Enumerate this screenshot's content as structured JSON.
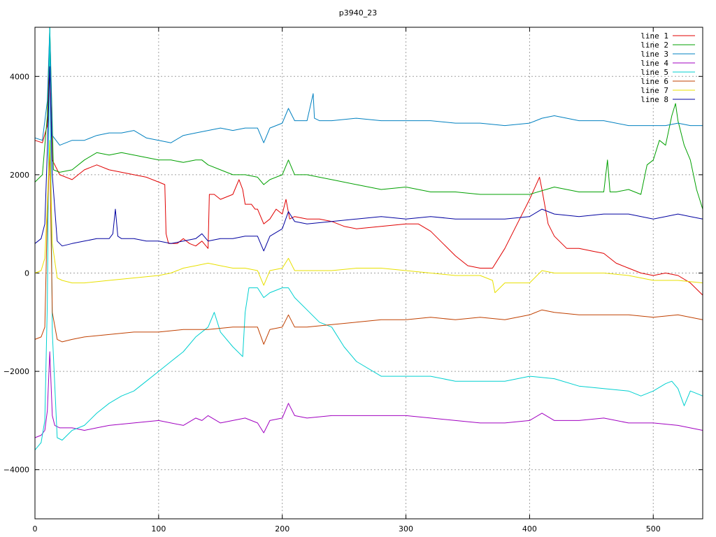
{
  "chart_data": {
    "type": "line",
    "title": "p3940_23",
    "xlabel": "",
    "ylabel": "",
    "xlim": [
      0,
      540
    ],
    "ylim": [
      -5000,
      5000
    ],
    "x_ticks": [
      0,
      100,
      200,
      300,
      400,
      500
    ],
    "y_ticks": [
      -4000,
      -2000,
      0,
      2000,
      4000
    ],
    "y_tick_labels": [
      "−4000",
      "−2000",
      "0",
      "2000",
      "4000"
    ],
    "grid": true,
    "legend_position": "top-right",
    "series": [
      {
        "name": "line 1",
        "color": "#e00000",
        "x": [
          0,
          6,
          10,
          12,
          14,
          20,
          30,
          35,
          40,
          50,
          60,
          70,
          80,
          90,
          100,
          105,
          106,
          108,
          115,
          120,
          125,
          130,
          135,
          140,
          141,
          145,
          150,
          160,
          165,
          168,
          170,
          175,
          178,
          180,
          185,
          190,
          195,
          200,
          203,
          206,
          210,
          220,
          230,
          240,
          250,
          260,
          280,
          300,
          310,
          320,
          330,
          340,
          350,
          360,
          370,
          380,
          390,
          400,
          408,
          410,
          415,
          420,
          430,
          440,
          450,
          460,
          470,
          480,
          490,
          500,
          510,
          520,
          530,
          540
        ],
        "y": [
          2700,
          2650,
          3000,
          4400,
          2300,
          2000,
          1900,
          2000,
          2100,
          2200,
          2100,
          2050,
          2000,
          1950,
          1850,
          1800,
          800,
          600,
          600,
          700,
          600,
          550,
          650,
          500,
          1600,
          1600,
          1500,
          1600,
          1900,
          1700,
          1400,
          1400,
          1300,
          1300,
          1000,
          1100,
          1300,
          1200,
          1500,
          1100,
          1150,
          1100,
          1100,
          1050,
          950,
          900,
          950,
          1000,
          1000,
          850,
          600,
          350,
          150,
          100,
          100,
          500,
          1000,
          1500,
          1950,
          1700,
          1000,
          750,
          500,
          500,
          450,
          400,
          200,
          100,
          0,
          -50,
          0,
          -50,
          -200,
          -450
        ]
      },
      {
        "name": "line 2",
        "color": "#00a000",
        "x": [
          0,
          6,
          10,
          12,
          13,
          15,
          20,
          30,
          40,
          50,
          60,
          70,
          80,
          100,
          110,
          120,
          130,
          135,
          140,
          150,
          160,
          170,
          180,
          185,
          190,
          200,
          205,
          210,
          220,
          240,
          260,
          280,
          300,
          320,
          340,
          360,
          380,
          400,
          420,
          440,
          460,
          463,
          465,
          470,
          480,
          490,
          495,
          500,
          505,
          510,
          515,
          518,
          520,
          525,
          530,
          535,
          540
        ],
        "y": [
          1850,
          2000,
          3200,
          5200,
          4000,
          2100,
          2050,
          2100,
          2300,
          2450,
          2400,
          2450,
          2400,
          2300,
          2300,
          2250,
          2300,
          2300,
          2200,
          2100,
          2000,
          2000,
          1950,
          1800,
          1900,
          2000,
          2300,
          2000,
          2000,
          1900,
          1800,
          1700,
          1750,
          1650,
          1650,
          1600,
          1600,
          1600,
          1750,
          1650,
          1650,
          2300,
          1650,
          1650,
          1700,
          1600,
          2200,
          2300,
          2700,
          2600,
          3200,
          3450,
          3100,
          2600,
          2300,
          1700,
          1300
        ]
      },
      {
        "name": "line 3",
        "color": "#0080c0",
        "x": [
          0,
          6,
          10,
          12,
          14,
          20,
          30,
          40,
          50,
          60,
          70,
          80,
          90,
          100,
          110,
          120,
          130,
          140,
          150,
          160,
          170,
          180,
          185,
          190,
          200,
          205,
          210,
          220,
          225,
          226,
          230,
          240,
          260,
          280,
          300,
          320,
          340,
          360,
          380,
          400,
          410,
          420,
          440,
          460,
          480,
          500,
          510,
          520,
          530,
          540
        ],
        "y": [
          2750,
          2700,
          3500,
          5200,
          2800,
          2600,
          2700,
          2700,
          2800,
          2850,
          2850,
          2900,
          2750,
          2700,
          2650,
          2800,
          2850,
          2900,
          2950,
          2900,
          2950,
          2950,
          2650,
          2950,
          3050,
          3350,
          3100,
          3100,
          3650,
          3150,
          3100,
          3100,
          3150,
          3100,
          3100,
          3100,
          3050,
          3050,
          3000,
          3050,
          3150,
          3200,
          3100,
          3100,
          3000,
          3000,
          3000,
          3050,
          3000,
          3000
        ]
      },
      {
        "name": "line 4",
        "color": "#a000c0",
        "x": [
          0,
          5,
          8,
          10,
          12,
          14,
          16,
          20,
          30,
          40,
          50,
          60,
          80,
          100,
          120,
          130,
          135,
          140,
          150,
          160,
          170,
          180,
          185,
          190,
          200,
          205,
          210,
          220,
          240,
          260,
          280,
          300,
          320,
          340,
          360,
          380,
          400,
          410,
          420,
          440,
          460,
          480,
          500,
          520,
          540
        ],
        "y": [
          -3350,
          -3300,
          -3200,
          -2800,
          -1600,
          -2900,
          -3100,
          -3150,
          -3150,
          -3200,
          -3150,
          -3100,
          -3050,
          -3000,
          -3100,
          -2950,
          -3000,
          -2900,
          -3050,
          -3000,
          -2950,
          -3050,
          -3250,
          -3000,
          -2950,
          -2650,
          -2900,
          -2950,
          -2900,
          -2900,
          -2900,
          -2900,
          -2950,
          -3000,
          -3050,
          -3050,
          -3000,
          -2850,
          -3000,
          -3000,
          -2950,
          -3050,
          -3050,
          -3100,
          -3200
        ]
      },
      {
        "name": "line 5",
        "color": "#00d0d0",
        "x": [
          0,
          5,
          8,
          10,
          12,
          14,
          18,
          22,
          30,
          40,
          50,
          60,
          70,
          80,
          90,
          100,
          110,
          120,
          130,
          140,
          145,
          150,
          160,
          168,
          170,
          173,
          175,
          180,
          185,
          190,
          200,
          205,
          210,
          220,
          230,
          240,
          250,
          260,
          280,
          300,
          320,
          340,
          360,
          380,
          400,
          420,
          440,
          460,
          480,
          490,
          500,
          510,
          515,
          520,
          525,
          530,
          535,
          540
        ],
        "y": [
          -3600,
          -3450,
          -3000,
          -600,
          5100,
          -1200,
          -3350,
          -3400,
          -3200,
          -3100,
          -2850,
          -2650,
          -2500,
          -2400,
          -2200,
          -2000,
          -1800,
          -1600,
          -1300,
          -1100,
          -800,
          -1200,
          -1500,
          -1700,
          -800,
          -300,
          -300,
          -300,
          -500,
          -400,
          -300,
          -300,
          -500,
          -750,
          -1000,
          -1100,
          -1500,
          -1800,
          -2100,
          -2100,
          -2100,
          -2200,
          -2200,
          -2200,
          -2100,
          -2150,
          -2300,
          -2350,
          -2400,
          -2500,
          -2400,
          -2250,
          -2200,
          -2350,
          -2700,
          -2400,
          -2450,
          -2500
        ]
      },
      {
        "name": "line 6",
        "color": "#c04000",
        "x": [
          0,
          5,
          8,
          10,
          12,
          14,
          18,
          22,
          30,
          40,
          60,
          80,
          100,
          120,
          140,
          160,
          170,
          180,
          185,
          190,
          200,
          205,
          210,
          220,
          240,
          260,
          280,
          300,
          320,
          340,
          360,
          380,
          400,
          410,
          420,
          440,
          460,
          480,
          500,
          520,
          540
        ],
        "y": [
          -1350,
          -1300,
          -1100,
          1200,
          2500,
          -800,
          -1350,
          -1400,
          -1350,
          -1300,
          -1250,
          -1200,
          -1200,
          -1150,
          -1150,
          -1100,
          -1100,
          -1100,
          -1450,
          -1150,
          -1100,
          -850,
          -1100,
          -1100,
          -1050,
          -1000,
          -950,
          -950,
          -900,
          -950,
          -900,
          -950,
          -850,
          -750,
          -800,
          -850,
          -850,
          -850,
          -900,
          -850,
          -950
        ]
      },
      {
        "name": "line 7",
        "color": "#e8e000",
        "x": [
          0,
          5,
          8,
          10,
          12,
          14,
          18,
          22,
          30,
          40,
          60,
          80,
          100,
          110,
          120,
          130,
          140,
          150,
          160,
          170,
          180,
          185,
          190,
          200,
          205,
          210,
          220,
          240,
          260,
          280,
          300,
          320,
          340,
          360,
          370,
          372,
          380,
          400,
          410,
          420,
          440,
          460,
          480,
          490,
          500,
          520,
          540
        ],
        "y": [
          0,
          50,
          300,
          1400,
          2700,
          600,
          -100,
          -150,
          -200,
          -200,
          -150,
          -100,
          -50,
          0,
          100,
          150,
          200,
          150,
          100,
          100,
          50,
          -250,
          50,
          100,
          300,
          50,
          50,
          50,
          100,
          100,
          50,
          0,
          -50,
          -50,
          -150,
          -400,
          -200,
          -200,
          50,
          0,
          0,
          0,
          -50,
          -100,
          -150,
          -150,
          -200
        ]
      },
      {
        "name": "line 8",
        "color": "#0000a0",
        "x": [
          0,
          5,
          8,
          10,
          12,
          14,
          18,
          22,
          30,
          40,
          50,
          60,
          63,
          65,
          67,
          70,
          80,
          90,
          100,
          110,
          120,
          130,
          135,
          140,
          150,
          160,
          170,
          180,
          185,
          190,
          200,
          205,
          210,
          220,
          240,
          260,
          280,
          300,
          320,
          340,
          360,
          380,
          400,
          410,
          420,
          440,
          460,
          480,
          500,
          510,
          520,
          530,
          540
        ],
        "y": [
          600,
          700,
          1000,
          2500,
          4200,
          2000,
          650,
          550,
          600,
          650,
          700,
          700,
          800,
          1300,
          750,
          700,
          700,
          650,
          650,
          600,
          650,
          700,
          800,
          650,
          700,
          700,
          750,
          750,
          450,
          750,
          900,
          1250,
          1050,
          1000,
          1050,
          1100,
          1150,
          1100,
          1150,
          1100,
          1100,
          1100,
          1150,
          1300,
          1200,
          1150,
          1200,
          1200,
          1100,
          1150,
          1200,
          1150,
          1100
        ]
      }
    ]
  }
}
